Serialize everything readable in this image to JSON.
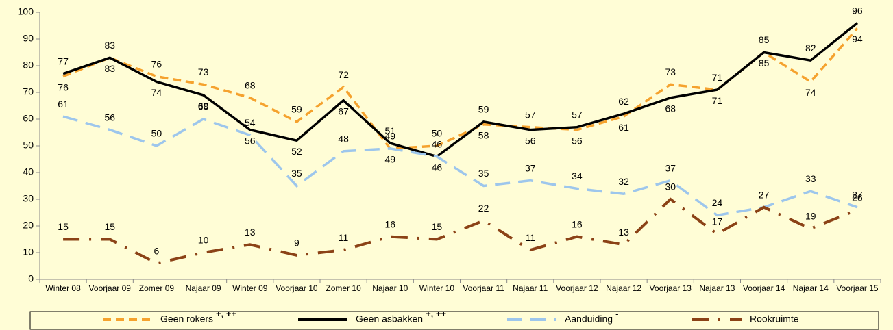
{
  "chart_data": {
    "type": "line",
    "categories": [
      "Winter 08",
      "Voorjaar 09",
      "Zomer 09",
      "Najaar 09",
      "Winter 09",
      "Voorjaar 10",
      "Zomer 10",
      "Najaar 10",
      "Winter 10",
      "Voorjaar 11",
      "Najaar 11",
      "Voorjaar 12",
      "Najaar 12",
      "Voorjaar 13",
      "Najaar 13",
      "Voorjaar 14",
      "Najaar 14",
      "Voorjaar 15"
    ],
    "series": [
      {
        "name": "Geen rokers",
        "legend_note": "+, ++",
        "color": "#f5a22e",
        "dash": "12,7",
        "values": [
          76,
          83,
          76,
          73,
          68,
          59,
          72,
          49,
          50,
          58,
          57,
          56,
          61,
          73,
          71,
          85,
          74,
          94
        ]
      },
      {
        "name": "Geen asbakken",
        "legend_note": "+, ++",
        "color": "#000000",
        "dash": "none",
        "values": [
          77,
          83,
          74,
          69,
          56,
          52,
          67,
          51,
          46,
          59,
          56,
          57,
          62,
          68,
          71,
          85,
          82,
          96
        ]
      },
      {
        "name": "Aanduiding",
        "legend_note": "-",
        "color": "#9dc6ec",
        "dash": "22,12",
        "values": [
          61,
          56,
          50,
          60,
          54,
          35,
          48,
          49,
          46,
          35,
          37,
          34,
          32,
          37,
          24,
          27,
          33,
          27
        ]
      },
      {
        "name": "Rookruimte",
        "color": "#8b4216",
        "dash": "24,14,3,14",
        "values": [
          15,
          15,
          6,
          10,
          13,
          9,
          11,
          16,
          15,
          22,
          11,
          16,
          13,
          30,
          17,
          27,
          19,
          26
        ]
      }
    ],
    "ylim": [
      0,
      100
    ],
    "yticks": [
      0,
      10,
      20,
      30,
      40,
      50,
      60,
      70,
      80,
      90,
      100
    ]
  }
}
